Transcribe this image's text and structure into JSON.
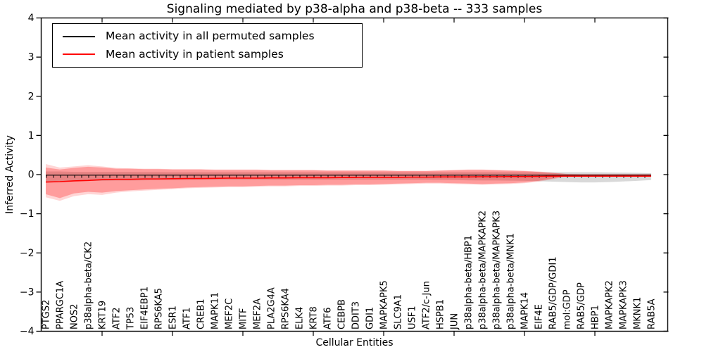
{
  "title": "Signaling mediated by p38-alpha and p38-beta -- 333 samples",
  "axes": {
    "ylabel": "Inferred Activity",
    "xlabel": "Cellular Entities",
    "yticks": [
      4,
      3,
      2,
      1,
      0,
      -1,
      -2,
      -3,
      -4
    ],
    "ylim": [
      -4,
      4
    ]
  },
  "legend": {
    "position": "upper left",
    "items": [
      {
        "label": "Mean activity in all permuted samples",
        "color": "#000000"
      },
      {
        "label": "Mean activity in patient samples",
        "color": "#ff0000"
      }
    ]
  },
  "chart_data": {
    "type": "line",
    "title": "Signaling mediated by p38-alpha and p38-beta -- 333 samples",
    "xlabel": "Cellular Entities",
    "ylabel": "Inferred Activity",
    "ylim": [
      -4,
      4
    ],
    "grid": false,
    "legend_position": "upper left",
    "categories": [
      "PTGS2",
      "PPARGC1A",
      "NOS2",
      "p38alpha-beta/CK2",
      "KRT19",
      "ATF2",
      "TP53",
      "EIF4EBP1",
      "RPS6KA5",
      "ESR1",
      "ATF1",
      "CREB1",
      "MAPK11",
      "MEF2C",
      "MITF",
      "MEF2A",
      "PLA2G4A",
      "RPS6KA4",
      "ELK4",
      "KRT8",
      "ATF6",
      "CEBPB",
      "DDIT3",
      "GDI1",
      "MAPKAPK5",
      "SLC9A1",
      "USF1",
      "ATF2/c-Jun",
      "HSPB1",
      "JUN",
      "p38alpha-beta/HBP1",
      "p38alpha-beta/MAPKAPK2",
      "p38alpha-beta/MAPKAPK3",
      "p38alpha-beta/MNK1",
      "MAPK14",
      "EIF4E",
      "RAB5/GDP/GDI1",
      "mol:GDP",
      "RAB5/GDP",
      "HBP1",
      "MAPKAPK2",
      "MAPKAPK3",
      "MKNK1",
      "RAB5A"
    ],
    "xticks_major_idx": [
      4,
      9,
      14,
      19,
      24,
      29,
      34,
      39
    ],
    "series": [
      {
        "id": "permuted-mean",
        "name": "Mean activity in all permuted samples",
        "color": "#000000",
        "marker": "tick",
        "values": [
          -0.015,
          -0.015,
          -0.015,
          -0.015,
          -0.015,
          -0.015,
          -0.015,
          -0.015,
          -0.015,
          -0.015,
          -0.015,
          -0.015,
          -0.015,
          -0.015,
          -0.015,
          -0.015,
          -0.015,
          -0.015,
          -0.015,
          -0.015,
          -0.015,
          -0.015,
          -0.015,
          -0.015,
          -0.015,
          -0.015,
          -0.015,
          -0.015,
          -0.015,
          -0.015,
          -0.015,
          -0.015,
          -0.015,
          -0.015,
          -0.015,
          -0.015,
          -0.015,
          -0.015,
          -0.015,
          -0.015,
          -0.015,
          -0.015,
          -0.015,
          -0.015
        ]
      },
      {
        "id": "patient-mean",
        "name": "Mean activity in patient samples",
        "color": "#ff0000",
        "marker": "none",
        "values": [
          -0.19,
          -0.18,
          -0.16,
          -0.15,
          -0.13,
          -0.12,
          -0.12,
          -0.11,
          -0.11,
          -0.105,
          -0.1,
          -0.1,
          -0.095,
          -0.09,
          -0.09,
          -0.09,
          -0.085,
          -0.085,
          -0.08,
          -0.08,
          -0.08,
          -0.075,
          -0.075,
          -0.07,
          -0.07,
          -0.07,
          -0.065,
          -0.065,
          -0.06,
          -0.06,
          -0.06,
          -0.055,
          -0.055,
          -0.05,
          -0.05,
          -0.045,
          -0.04,
          -0.04,
          -0.04,
          -0.04,
          -0.04,
          -0.04,
          -0.04,
          -0.04
        ]
      }
    ],
    "bands": [
      {
        "id": "permuted-std-band",
        "name": "permuted samples std band",
        "color": "#808080",
        "opacity": 0.3,
        "upper": [
          0.08,
          0.08,
          0.07,
          0.07,
          0.07,
          0.07,
          0.07,
          0.065,
          0.065,
          0.06,
          0.06,
          0.06,
          0.06,
          0.06,
          0.06,
          0.06,
          0.06,
          0.06,
          0.06,
          0.06,
          0.06,
          0.06,
          0.06,
          0.06,
          0.06,
          0.06,
          0.06,
          0.06,
          0.06,
          0.06,
          0.06,
          0.06,
          0.06,
          0.06,
          0.06,
          0.06,
          0.06,
          0.06,
          0.06,
          0.06,
          0.055,
          0.05,
          0.045,
          0.035
        ],
        "lower": [
          -0.18,
          -0.18,
          -0.17,
          -0.16,
          -0.16,
          -0.15,
          -0.15,
          -0.145,
          -0.14,
          -0.14,
          -0.135,
          -0.13,
          -0.13,
          -0.13,
          -0.13,
          -0.13,
          -0.13,
          -0.13,
          -0.13,
          -0.13,
          -0.13,
          -0.13,
          -0.13,
          -0.13,
          -0.13,
          -0.13,
          -0.13,
          -0.13,
          -0.135,
          -0.14,
          -0.145,
          -0.15,
          -0.15,
          -0.155,
          -0.16,
          -0.17,
          -0.18,
          -0.19,
          -0.2,
          -0.2,
          -0.19,
          -0.175,
          -0.16,
          -0.14
        ]
      },
      {
        "id": "patient-std-outer-band",
        "name": "patient samples outer std band",
        "color": "#ff0000",
        "opacity": 0.16,
        "upper": [
          0.27,
          0.18,
          0.21,
          0.24,
          0.21,
          0.17,
          0.16,
          0.15,
          0.15,
          0.14,
          0.14,
          0.14,
          0.13,
          0.13,
          0.13,
          0.13,
          0.12,
          0.12,
          0.12,
          0.12,
          0.11,
          0.11,
          0.11,
          0.11,
          0.11,
          0.1,
          0.1,
          0.1,
          0.11,
          0.12,
          0.13,
          0.13,
          0.12,
          0.11,
          0.1,
          0.08,
          0.05,
          0.02,
          0.015,
          0.015,
          0.015,
          0.015,
          0.015,
          0.015
        ],
        "lower": [
          -0.58,
          -0.67,
          -0.55,
          -0.5,
          -0.52,
          -0.46,
          -0.43,
          -0.41,
          -0.39,
          -0.37,
          -0.35,
          -0.34,
          -0.33,
          -0.32,
          -0.32,
          -0.31,
          -0.3,
          -0.3,
          -0.29,
          -0.29,
          -0.28,
          -0.28,
          -0.27,
          -0.27,
          -0.26,
          -0.25,
          -0.24,
          -0.23,
          -0.23,
          -0.24,
          -0.25,
          -0.26,
          -0.25,
          -0.24,
          -0.22,
          -0.18,
          -0.12,
          -0.045,
          -0.04,
          -0.04,
          -0.04,
          -0.04,
          -0.04,
          -0.04
        ]
      },
      {
        "id": "patient-std-band",
        "name": "patient samples std band",
        "color": "#ff0000",
        "opacity": 0.27,
        "upper": [
          0.18,
          0.13,
          0.17,
          0.2,
          0.18,
          0.15,
          0.15,
          0.14,
          0.14,
          0.13,
          0.13,
          0.13,
          0.12,
          0.12,
          0.12,
          0.12,
          0.11,
          0.11,
          0.11,
          0.11,
          0.1,
          0.1,
          0.1,
          0.1,
          0.1,
          0.09,
          0.09,
          0.09,
          0.1,
          0.11,
          0.12,
          0.12,
          0.11,
          0.1,
          0.09,
          0.07,
          0.04,
          0.015,
          0.01,
          0.01,
          0.01,
          0.01,
          0.01,
          0.01
        ],
        "lower": [
          -0.5,
          -0.6,
          -0.48,
          -0.44,
          -0.46,
          -0.42,
          -0.4,
          -0.38,
          -0.36,
          -0.35,
          -0.33,
          -0.32,
          -0.31,
          -0.3,
          -0.3,
          -0.29,
          -0.28,
          -0.28,
          -0.27,
          -0.27,
          -0.26,
          -0.26,
          -0.25,
          -0.25,
          -0.24,
          -0.23,
          -0.22,
          -0.21,
          -0.21,
          -0.22,
          -0.23,
          -0.24,
          -0.23,
          -0.22,
          -0.2,
          -0.16,
          -0.1,
          -0.035,
          -0.03,
          -0.03,
          -0.03,
          -0.03,
          -0.03,
          -0.03
        ]
      }
    ]
  }
}
